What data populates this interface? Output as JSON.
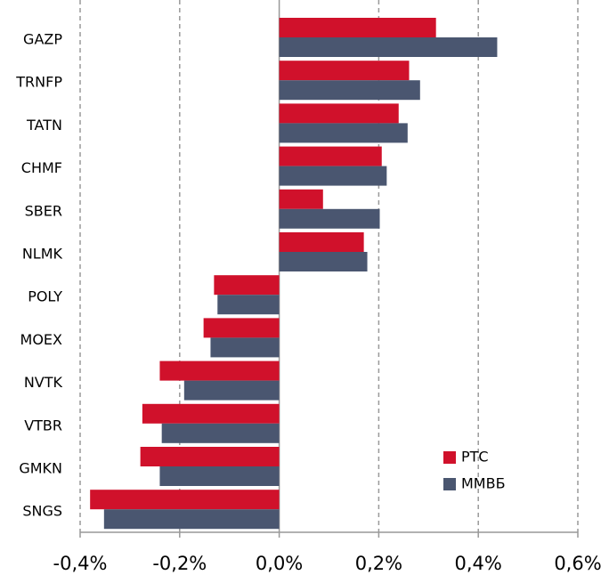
{
  "chart_data": {
    "type": "hbar",
    "categories": [
      "GAZP",
      "TRNFP",
      "TATN",
      "CHMF",
      "SBER",
      "NLMK",
      "POLY",
      "MOEX",
      "NVTK",
      "VTBR",
      "GMKN",
      "SNGS"
    ],
    "series": [
      {
        "name": "РТС",
        "color": "#d0112b",
        "values": [
          0.315,
          0.261,
          0.24,
          0.206,
          0.088,
          0.17,
          -0.131,
          -0.152,
          -0.24,
          -0.275,
          -0.279,
          -0.38
        ]
      },
      {
        "name": "ММВБ",
        "color": "#4a5670",
        "values": [
          0.438,
          0.283,
          0.258,
          0.216,
          0.202,
          0.177,
          -0.124,
          -0.138,
          -0.191,
          -0.236,
          -0.24,
          -0.352
        ]
      }
    ],
    "xlim": [
      -0.4,
      0.6
    ],
    "xticks": [
      {
        "value": -0.4,
        "label": "-0,4%"
      },
      {
        "value": -0.2,
        "label": "-0,2%"
      },
      {
        "value": 0,
        "label": "0,0%"
      },
      {
        "value": 0.2,
        "label": "0,2%"
      },
      {
        "value": 0.4,
        "label": "0,4%"
      },
      {
        "value": 0.6,
        "label": "0,6%"
      }
    ],
    "grid": true,
    "legend": "lower-right"
  }
}
